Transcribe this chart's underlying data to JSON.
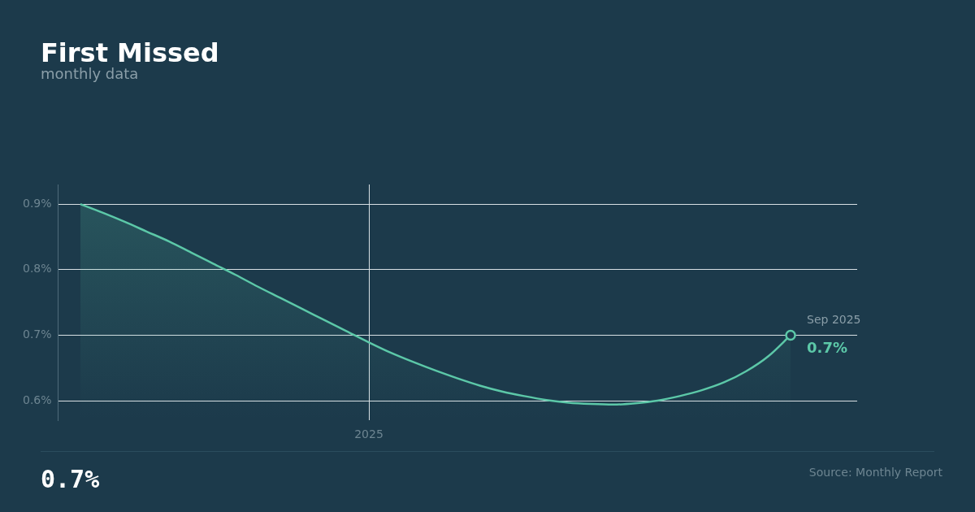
{
  "chart_data": {
    "type": "area",
    "title": "First Missed",
    "subtitle": "monthly data",
    "categories": [
      null,
      null,
      null,
      null,
      null,
      null,
      null,
      null,
      null,
      null,
      null,
      null,
      null,
      null,
      "2025",
      null,
      null,
      null,
      null,
      null,
      null,
      null,
      null,
      null,
      null,
      null,
      null,
      null,
      null,
      null,
      null,
      null,
      null,
      null,
      null,
      null,
      null
    ],
    "series": [
      {
        "color": "#5cc8a8",
        "values": [
          null,
          0.9,
          0.887,
          0.873,
          0.858,
          0.843,
          0.826,
          0.809,
          0.792,
          0.774,
          0.757,
          0.74,
          0.723,
          0.706,
          0.689,
          0.673,
          0.659,
          0.646,
          0.634,
          0.623,
          0.614,
          0.607,
          0.601,
          0.597,
          0.595,
          0.594,
          0.596,
          0.6,
          0.607,
          0.616,
          0.628,
          0.645,
          0.668,
          0.7,
          null,
          null,
          null
        ]
      }
    ],
    "ylim": [
      0.57,
      0.93
    ],
    "yticks": [
      {
        "value": 0.6,
        "label": "0.6%"
      },
      {
        "value": 0.7,
        "label": "0.7%"
      },
      {
        "value": 0.8,
        "label": "0.8%"
      },
      {
        "value": 0.9,
        "label": "0.9%"
      }
    ],
    "grid": true,
    "legend": false,
    "marker": "none",
    "line_style": "solid",
    "annotations": [
      "Sep 2025",
      "0.7%",
      "0.7%",
      "Source: Monthly Report"
    ]
  }
}
